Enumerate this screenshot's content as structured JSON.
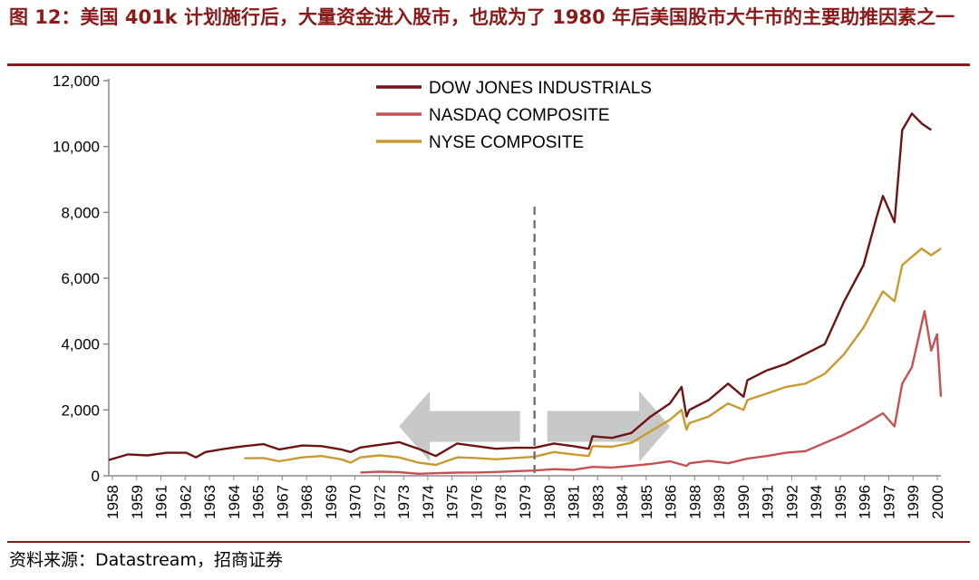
{
  "title": "图 12：美国 401k 计划施行后，大量资金进入股市，也成为了 1980 年后美国股市大牛市的主要助推因素之一",
  "source": "资料来源：Datastream，招商证券",
  "chart_data": {
    "type": "line",
    "title": "",
    "xlabel": "",
    "ylabel": "",
    "xlim": [
      1958,
      2001
    ],
    "ylim": [
      0,
      12000
    ],
    "y_ticks": [
      "0",
      "2,000",
      "4,000",
      "6,000",
      "8,000",
      "10,000",
      "12,000"
    ],
    "x_ticks": [
      "1958",
      "1959",
      "1961",
      "1962",
      "1963",
      "1964",
      "1965",
      "1967",
      "1968",
      "1969",
      "1970",
      "1972",
      "1973",
      "1974",
      "1975",
      "1976",
      "1978",
      "1979",
      "1980",
      "1981",
      "1983",
      "1984",
      "1985",
      "1986",
      "1988",
      "1989",
      "1990",
      "1991",
      "1992",
      "1994",
      "1995",
      "1996",
      "1997",
      "1999",
      "2000"
    ],
    "legend_position": "top-center",
    "grid": false,
    "annotations": {
      "vertical_dashed_line_x": 1980,
      "arrow_left": "from 1980 back to 1973",
      "arrow_right": "from 1980 forward to 1987"
    },
    "series": [
      {
        "name": "DOW JONES INDUSTRIALS",
        "color": "#6e1414",
        "x": [
          1958,
          1959,
          1960,
          1961,
          1962,
          1962.5,
          1963,
          1964,
          1965,
          1966,
          1966.8,
          1968,
          1969,
          1970,
          1970.5,
          1971,
          1972,
          1973,
          1974,
          1974.9,
          1976,
          1977,
          1978,
          1979,
          1980,
          1981,
          1982,
          1982.8,
          1983,
          1984,
          1985,
          1986,
          1987,
          1987.6,
          1987.85,
          1988,
          1989,
          1990,
          1990.8,
          1991,
          1992,
          1993,
          1994,
          1995,
          1996,
          1997,
          1997.7,
          1998,
          1998.6,
          1999,
          1999.5,
          2000,
          2000.5
        ],
        "y": [
          480,
          650,
          620,
          700,
          700,
          560,
          720,
          820,
          900,
          960,
          800,
          920,
          900,
          800,
          720,
          860,
          940,
          1020,
          820,
          600,
          980,
          900,
          820,
          850,
          850,
          980,
          900,
          820,
          1200,
          1150,
          1300,
          1800,
          2200,
          2700,
          1800,
          2000,
          2300,
          2800,
          2400,
          2900,
          3200,
          3400,
          3700,
          4000,
          5300,
          6400,
          7900,
          8500,
          7700,
          10500,
          11000,
          10700,
          10500
        ]
      },
      {
        "name": "NASDAQ COMPOSITE",
        "color": "#c75050",
        "x": [
          1971,
          1972,
          1973,
          1974,
          1975,
          1976,
          1977,
          1978,
          1979,
          1980,
          1981,
          1982,
          1983,
          1984,
          1985,
          1986,
          1987,
          1987.85,
          1988,
          1989,
          1990,
          1991,
          1992,
          1993,
          1994,
          1995,
          1996,
          1997,
          1998,
          1998.6,
          1999,
          1999.5,
          2000.15,
          2000.5,
          2000.8,
          2001
        ],
        "y": [
          100,
          125,
          110,
          60,
          80,
          95,
          100,
          115,
          140,
          160,
          200,
          180,
          270,
          250,
          300,
          360,
          440,
          300,
          380,
          450,
          380,
          520,
          600,
          700,
          750,
          1000,
          1250,
          1550,
          1900,
          1500,
          2800,
          3300,
          5000,
          3800,
          4300,
          2400
        ]
      },
      {
        "name": "NYSE COMPOSITE",
        "color": "#c99a2e",
        "x": [
          1965,
          1966,
          1966.8,
          1968,
          1969,
          1970,
          1970.5,
          1971,
          1972,
          1973,
          1974,
          1974.9,
          1976,
          1977,
          1978,
          1979,
          1980,
          1981,
          1982,
          1982.8,
          1983,
          1984,
          1985,
          1986,
          1987,
          1987.6,
          1987.85,
          1988,
          1989,
          1990,
          1990.8,
          1991,
          1992,
          1993,
          1994,
          1995,
          1996,
          1997,
          1998,
          1998.6,
          1999,
          2000,
          2000.5,
          2001
        ],
        "y": [
          530,
          540,
          440,
          560,
          600,
          500,
          400,
          560,
          620,
          560,
          400,
          330,
          560,
          540,
          500,
          540,
          580,
          720,
          650,
          600,
          900,
          880,
          1000,
          1350,
          1700,
          2000,
          1400,
          1600,
          1800,
          2200,
          2000,
          2300,
          2500,
          2700,
          2800,
          3100,
          3700,
          4500,
          5600,
          5300,
          6400,
          6900,
          6700,
          6900
        ]
      }
    ]
  }
}
